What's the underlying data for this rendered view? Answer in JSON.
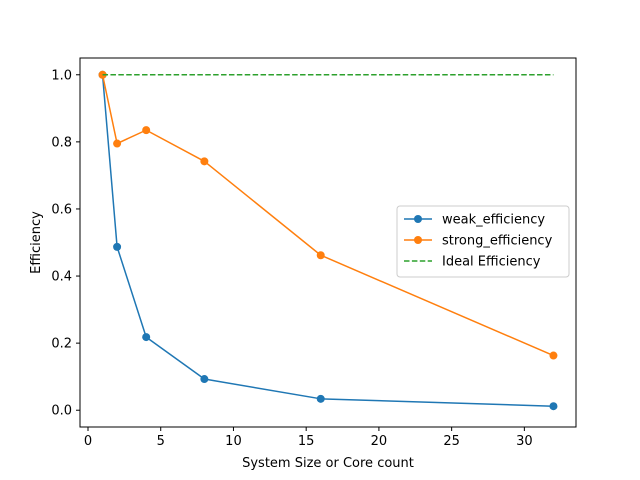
{
  "chart_data": {
    "type": "line",
    "title": "",
    "xlabel": "System Size or Core count",
    "ylabel": "Efficiency",
    "xlim": [
      -0.55,
      33.55
    ],
    "ylim": [
      -0.05,
      1.05
    ],
    "xticks": [
      0,
      5,
      10,
      15,
      20,
      25,
      30
    ],
    "yticks": [
      0.0,
      0.2,
      0.4,
      0.6,
      0.8,
      1.0
    ],
    "ytick_labels": [
      "0.0",
      "0.2",
      "0.4",
      "0.6",
      "0.8",
      "1.0"
    ],
    "grid": false,
    "legend_position": "center-right",
    "series": [
      {
        "name": "weak_efficiency",
        "color": "#1f77b4",
        "style": "solid",
        "marker": "circle",
        "x": [
          1,
          2,
          4,
          8,
          16,
          32
        ],
        "y": [
          1.0,
          0.487,
          0.218,
          0.093,
          0.034,
          0.012
        ]
      },
      {
        "name": "strong_efficiency",
        "color": "#ff7f0e",
        "style": "solid",
        "marker": "circle",
        "x": [
          1,
          2,
          4,
          8,
          16,
          32
        ],
        "y": [
          1.0,
          0.795,
          0.835,
          0.742,
          0.462,
          0.163
        ]
      },
      {
        "name": "Ideal Efficiency",
        "color": "#2ca02c",
        "style": "dashed",
        "marker": "none",
        "x": [
          1,
          32
        ],
        "y": [
          1.0,
          1.0
        ]
      }
    ]
  }
}
